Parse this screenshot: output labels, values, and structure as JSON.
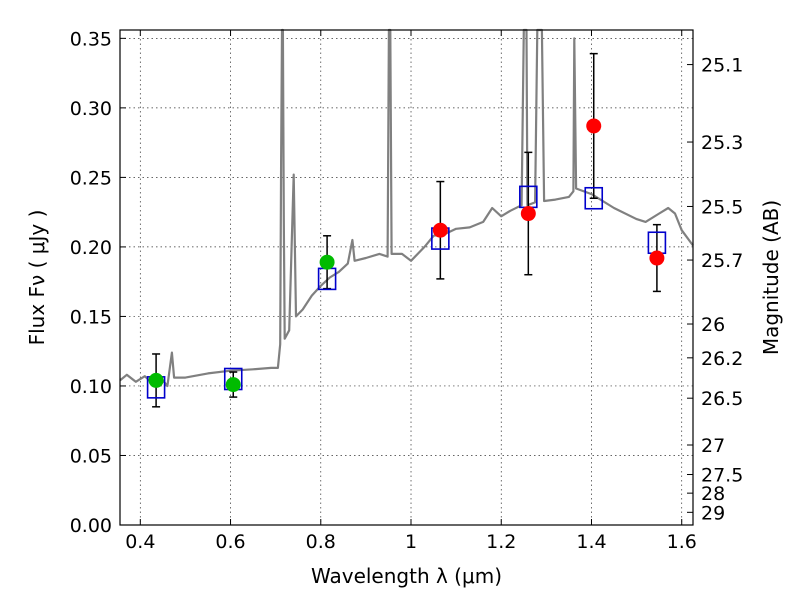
{
  "chart_data": {
    "type": "scatter",
    "title": "",
    "xlabel": "Wavelength  λ (μm)",
    "ylabel": "Flux  Fν  ( μJy )",
    "y2label": "Magnitude (AB)",
    "xlim": [
      0.355,
      1.625
    ],
    "ylim": [
      0.0,
      0.356
    ],
    "grid": true,
    "x_ticks": [
      {
        "v": 0.4,
        "label": "0.4"
      },
      {
        "v": 0.6,
        "label": "0.6"
      },
      {
        "v": 0.8,
        "label": "0.8"
      },
      {
        "v": 1.0,
        "label": "1"
      },
      {
        "v": 1.2,
        "label": "1.2"
      },
      {
        "v": 1.4,
        "label": "1.4"
      },
      {
        "v": 1.6,
        "label": "1.6"
      }
    ],
    "y_ticks": [
      {
        "v": 0.0,
        "label": "0.00"
      },
      {
        "v": 0.05,
        "label": "0.05"
      },
      {
        "v": 0.1,
        "label": "0.10"
      },
      {
        "v": 0.15,
        "label": "0.15"
      },
      {
        "v": 0.2,
        "label": "0.20"
      },
      {
        "v": 0.25,
        "label": "0.25"
      },
      {
        "v": 0.3,
        "label": "0.30"
      },
      {
        "v": 0.35,
        "label": "0.35"
      }
    ],
    "y2_ticks": [
      {
        "mag": 25.1,
        "label": "25.1"
      },
      {
        "mag": 25.3,
        "label": "25.3"
      },
      {
        "mag": 25.5,
        "label": "25.5"
      },
      {
        "mag": 25.7,
        "label": "25.7"
      },
      {
        "mag": 26,
        "label": "26"
      },
      {
        "mag": 26.2,
        "label": "26.2"
      },
      {
        "mag": 26.5,
        "label": "26.5"
      },
      {
        "mag": 27,
        "label": "27"
      },
      {
        "mag": 27.5,
        "label": "27.5"
      },
      {
        "mag": 28,
        "label": "28"
      },
      {
        "mag": 29,
        "label": "29"
      }
    ],
    "series": [
      {
        "marker": "circle",
        "color": "#00bb00",
        "points": [
          {
            "x": 0.435,
            "y": 0.104,
            "yerr": 0.019
          },
          {
            "x": 0.606,
            "y": 0.101,
            "yerr": 0.009
          },
          {
            "x": 0.814,
            "y": 0.189,
            "yerr": 0.019
          }
        ]
      },
      {
        "marker": "circle",
        "color": "#ff0000",
        "points": [
          {
            "x": 1.065,
            "y": 0.212,
            "yerr": 0.035
          },
          {
            "x": 1.26,
            "y": 0.224,
            "yerr": 0.044
          },
          {
            "x": 1.405,
            "y": 0.287,
            "yerr": 0.052
          },
          {
            "x": 1.545,
            "y": 0.192,
            "yerr": 0.024
          }
        ]
      },
      {
        "marker": "square-open",
        "color": "#0000cc",
        "points": [
          {
            "x": 0.435,
            "y": 0.099
          },
          {
            "x": 0.606,
            "y": 0.105
          },
          {
            "x": 0.814,
            "y": 0.177
          },
          {
            "x": 1.065,
            "y": 0.206
          },
          {
            "x": 1.26,
            "y": 0.236
          },
          {
            "x": 1.405,
            "y": 0.235
          },
          {
            "x": 1.545,
            "y": 0.203
          }
        ]
      },
      {
        "marker": "line",
        "color": "#808080",
        "points": [
          [
            0.355,
            0.104
          ],
          [
            0.37,
            0.108
          ],
          [
            0.39,
            0.103
          ],
          [
            0.41,
            0.107
          ],
          [
            0.43,
            0.101
          ],
          [
            0.45,
            0.104
          ],
          [
            0.46,
            0.1
          ],
          [
            0.47,
            0.124
          ],
          [
            0.475,
            0.106
          ],
          [
            0.5,
            0.106
          ],
          [
            0.55,
            0.109
          ],
          [
            0.6,
            0.111
          ],
          [
            0.65,
            0.112
          ],
          [
            0.69,
            0.113
          ],
          [
            0.705,
            0.113
          ],
          [
            0.71,
            0.13
          ],
          [
            0.712,
            0.26
          ],
          [
            0.714,
            0.356
          ],
          [
            0.716,
            0.356
          ],
          [
            0.718,
            0.22
          ],
          [
            0.72,
            0.134
          ],
          [
            0.73,
            0.14
          ],
          [
            0.74,
            0.252
          ],
          [
            0.745,
            0.15
          ],
          [
            0.76,
            0.155
          ],
          [
            0.78,
            0.165
          ],
          [
            0.8,
            0.172
          ],
          [
            0.82,
            0.178
          ],
          [
            0.84,
            0.182
          ],
          [
            0.86,
            0.188
          ],
          [
            0.87,
            0.205
          ],
          [
            0.875,
            0.19
          ],
          [
            0.9,
            0.192
          ],
          [
            0.93,
            0.195
          ],
          [
            0.948,
            0.193
          ],
          [
            0.951,
            0.356
          ],
          [
            0.954,
            0.356
          ],
          [
            0.957,
            0.195
          ],
          [
            0.98,
            0.195
          ],
          [
            1.0,
            0.19
          ],
          [
            1.03,
            0.2
          ],
          [
            1.05,
            0.208
          ],
          [
            1.08,
            0.21
          ],
          [
            1.1,
            0.213
          ],
          [
            1.13,
            0.214
          ],
          [
            1.16,
            0.218
          ],
          [
            1.18,
            0.228
          ],
          [
            1.2,
            0.222
          ],
          [
            1.22,
            0.226
          ],
          [
            1.245,
            0.23
          ],
          [
            1.25,
            0.356
          ],
          [
            1.256,
            0.356
          ],
          [
            1.258,
            0.23
          ],
          [
            1.275,
            0.232
          ],
          [
            1.28,
            0.356
          ],
          [
            1.29,
            0.356
          ],
          [
            1.295,
            0.233
          ],
          [
            1.32,
            0.234
          ],
          [
            1.35,
            0.236
          ],
          [
            1.36,
            0.24
          ],
          [
            1.362,
            0.35
          ],
          [
            1.366,
            0.242
          ],
          [
            1.4,
            0.238
          ],
          [
            1.45,
            0.228
          ],
          [
            1.5,
            0.22
          ],
          [
            1.52,
            0.218
          ],
          [
            1.55,
            0.224
          ],
          [
            1.57,
            0.228
          ],
          [
            1.585,
            0.224
          ],
          [
            1.6,
            0.212
          ],
          [
            1.625,
            0.201
          ]
        ]
      }
    ]
  }
}
